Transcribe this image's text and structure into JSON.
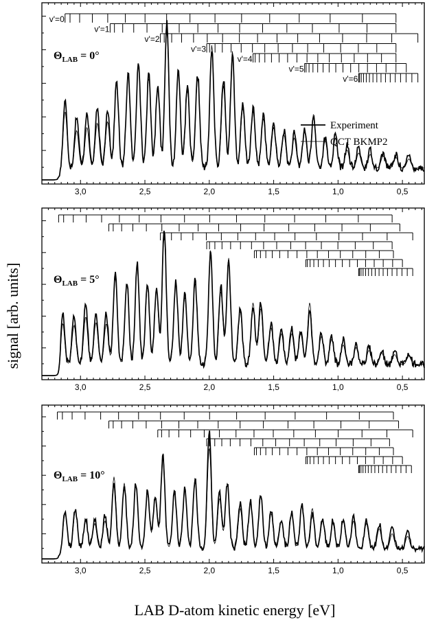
{
  "chart_data": [
    {
      "type": "line",
      "panel": "top",
      "angle_label": {
        "theta": "Θ",
        "sub": "LAB",
        "value": "= 0°"
      },
      "x_ticks": [
        "3,0",
        "2,5",
        "2,0",
        "1,5",
        "1,0",
        "0,5"
      ],
      "x_tick_values": [
        3.0,
        2.5,
        2.0,
        1.5,
        1.0,
        0.5
      ],
      "xlim": [
        3.3,
        0.33
      ],
      "ylim": [
        0,
        1.0
      ],
      "legend": [
        "Experiment",
        "QCT BKMP2"
      ],
      "legend_placement": "right",
      "vibrational_combs": [
        {
          "label": "v'=0",
          "start": 3.12,
          "end": 0.55
        },
        {
          "label": "v'=1",
          "start": 2.77,
          "end": 0.55
        },
        {
          "label": "v'=2",
          "start": 2.38,
          "end": 0.38
        },
        {
          "label": "v'=3",
          "start": 2.02,
          "end": 0.55
        },
        {
          "label": "v'=4",
          "start": 1.66,
          "end": 0.55
        },
        {
          "label": "v'=5",
          "start": 1.26,
          "end": 0.47
        },
        {
          "label": "v'=6",
          "start": 0.84,
          "end": 0.38
        }
      ],
      "peaks": [
        {
          "x": 3.12,
          "exp": 0.45,
          "qct": 0.38
        },
        {
          "x": 3.03,
          "exp": 0.35,
          "qct": 0.25
        },
        {
          "x": 2.95,
          "exp": 0.38,
          "qct": 0.27
        },
        {
          "x": 2.87,
          "exp": 0.39,
          "qct": 0.3
        },
        {
          "x": 2.79,
          "exp": 0.4,
          "qct": 0.31
        },
        {
          "x": 2.72,
          "exp": 0.58,
          "qct": 0.57
        },
        {
          "x": 2.63,
          "exp": 0.64,
          "qct": 0.62
        },
        {
          "x": 2.55,
          "exp": 0.72,
          "qct": 0.7
        },
        {
          "x": 2.47,
          "exp": 0.62,
          "qct": 0.6
        },
        {
          "x": 2.4,
          "exp": 0.56,
          "qct": 0.55
        },
        {
          "x": 2.33,
          "exp": 0.98,
          "qct": 0.92
        },
        {
          "x": 2.24,
          "exp": 0.66,
          "qct": 0.64
        },
        {
          "x": 2.17,
          "exp": 0.54,
          "qct": 0.52
        },
        {
          "x": 2.09,
          "exp": 0.62,
          "qct": 0.6
        },
        {
          "x": 1.98,
          "exp": 0.8,
          "qct": 0.82
        },
        {
          "x": 1.89,
          "exp": 0.6,
          "qct": 0.55
        },
        {
          "x": 1.82,
          "exp": 0.76,
          "qct": 0.78
        },
        {
          "x": 1.74,
          "exp": 0.42,
          "qct": 0.4
        },
        {
          "x": 1.66,
          "exp": 0.4,
          "qct": 0.38
        },
        {
          "x": 1.58,
          "exp": 0.36,
          "qct": 0.33
        },
        {
          "x": 1.5,
          "exp": 0.3,
          "qct": 0.27
        },
        {
          "x": 1.42,
          "exp": 0.25,
          "qct": 0.22
        },
        {
          "x": 1.34,
          "exp": 0.23,
          "qct": 0.2
        },
        {
          "x": 1.26,
          "exp": 0.26,
          "qct": 0.24
        },
        {
          "x": 1.19,
          "exp": 0.34,
          "qct": 0.36
        },
        {
          "x": 1.1,
          "exp": 0.2,
          "qct": 0.18
        },
        {
          "x": 1.02,
          "exp": 0.22,
          "qct": 0.2
        },
        {
          "x": 0.93,
          "exp": 0.15,
          "qct": 0.12
        },
        {
          "x": 0.84,
          "exp": 0.14,
          "qct": 0.1
        },
        {
          "x": 0.75,
          "exp": 0.12,
          "qct": 0.09
        },
        {
          "x": 0.65,
          "exp": 0.1,
          "qct": 0.08
        },
        {
          "x": 0.55,
          "exp": 0.09,
          "qct": 0.07
        },
        {
          "x": 0.45,
          "exp": 0.08,
          "qct": 0.06
        }
      ]
    },
    {
      "type": "line",
      "panel": "middle",
      "angle_label": {
        "theta": "Θ",
        "sub": "LAB",
        "value": "= 5°"
      },
      "x_ticks": [
        "3,0",
        "2,5",
        "2,0",
        "1,5",
        "1,0",
        "0,5"
      ],
      "x_tick_values": [
        3.0,
        2.5,
        2.0,
        1.5,
        1.0,
        0.5
      ],
      "xlim": [
        3.3,
        0.33
      ],
      "ylim": [
        0,
        1.0
      ],
      "vibrational_combs": [
        {
          "label": "",
          "start": 3.17,
          "end": 0.58
        },
        {
          "label": "",
          "start": 2.78,
          "end": 0.52
        },
        {
          "label": "",
          "start": 2.38,
          "end": 0.42
        },
        {
          "label": "",
          "start": 2.02,
          "end": 0.58
        },
        {
          "label": "",
          "start": 1.65,
          "end": 0.57
        },
        {
          "label": "",
          "start": 1.25,
          "end": 0.5
        },
        {
          "label": "",
          "start": 0.84,
          "end": 0.42
        }
      ],
      "peaks": [
        {
          "x": 3.14,
          "exp": 0.4,
          "qct": 0.32
        },
        {
          "x": 3.05,
          "exp": 0.36,
          "qct": 0.28
        },
        {
          "x": 2.96,
          "exp": 0.44,
          "qct": 0.34
        },
        {
          "x": 2.88,
          "exp": 0.38,
          "qct": 0.3
        },
        {
          "x": 2.8,
          "exp": 0.36,
          "qct": 0.29
        },
        {
          "x": 2.73,
          "exp": 0.66,
          "qct": 0.62
        },
        {
          "x": 2.64,
          "exp": 0.6,
          "qct": 0.58
        },
        {
          "x": 2.56,
          "exp": 0.72,
          "qct": 0.7
        },
        {
          "x": 2.48,
          "exp": 0.58,
          "qct": 0.56
        },
        {
          "x": 2.41,
          "exp": 0.55,
          "qct": 0.53
        },
        {
          "x": 2.35,
          "exp": 0.97,
          "qct": 0.92
        },
        {
          "x": 2.26,
          "exp": 0.6,
          "qct": 0.58
        },
        {
          "x": 2.19,
          "exp": 0.5,
          "qct": 0.48
        },
        {
          "x": 2.11,
          "exp": 0.6,
          "qct": 0.58
        },
        {
          "x": 1.99,
          "exp": 0.8,
          "qct": 0.82
        },
        {
          "x": 1.91,
          "exp": 0.56,
          "qct": 0.52
        },
        {
          "x": 1.85,
          "exp": 0.74,
          "qct": 0.76
        },
        {
          "x": 1.76,
          "exp": 0.4,
          "qct": 0.38
        },
        {
          "x": 1.66,
          "exp": 0.42,
          "qct": 0.44
        },
        {
          "x": 1.6,
          "exp": 0.44,
          "qct": 0.4
        },
        {
          "x": 1.52,
          "exp": 0.3,
          "qct": 0.26
        },
        {
          "x": 1.44,
          "exp": 0.26,
          "qct": 0.22
        },
        {
          "x": 1.36,
          "exp": 0.26,
          "qct": 0.22
        },
        {
          "x": 1.29,
          "exp": 0.24,
          "qct": 0.22
        },
        {
          "x": 1.22,
          "exp": 0.38,
          "qct": 0.44
        },
        {
          "x": 1.13,
          "exp": 0.22,
          "qct": 0.2
        },
        {
          "x": 1.05,
          "exp": 0.2,
          "qct": 0.18
        },
        {
          "x": 0.96,
          "exp": 0.18,
          "qct": 0.14
        },
        {
          "x": 0.86,
          "exp": 0.15,
          "qct": 0.12
        },
        {
          "x": 0.76,
          "exp": 0.13,
          "qct": 0.1
        },
        {
          "x": 0.66,
          "exp": 0.11,
          "qct": 0.08
        },
        {
          "x": 0.56,
          "exp": 0.1,
          "qct": 0.07
        },
        {
          "x": 0.45,
          "exp": 0.09,
          "qct": 0.06
        }
      ]
    },
    {
      "type": "line",
      "panel": "bottom",
      "angle_label": {
        "theta": "Θ",
        "sub": "LAB",
        "value": "= 10°"
      },
      "x_ticks": [
        "3,0",
        "2,5",
        "2,0",
        "1,5",
        "1,0",
        "0,5"
      ],
      "x_tick_values": [
        3.0,
        2.5,
        2.0,
        1.5,
        1.0,
        0.5
      ],
      "xlim": [
        3.3,
        0.33
      ],
      "ylim": [
        0,
        1.0
      ],
      "xlabel": "LAB D-atom kinetic energy [eV]",
      "vibrational_combs": [
        {
          "label": "",
          "start": 3.18,
          "end": 0.57
        },
        {
          "label": "",
          "start": 2.78,
          "end": 0.53
        },
        {
          "label": "",
          "start": 2.4,
          "end": 0.42
        },
        {
          "label": "",
          "start": 2.02,
          "end": 0.6
        },
        {
          "label": "",
          "start": 1.65,
          "end": 0.57
        },
        {
          "label": "",
          "start": 1.25,
          "end": 0.5
        },
        {
          "label": "",
          "start": 0.84,
          "end": 0.43
        }
      ],
      "peaks": [
        {
          "x": 3.12,
          "exp": 0.3,
          "qct": 0.28
        },
        {
          "x": 3.04,
          "exp": 0.32,
          "qct": 0.3
        },
        {
          "x": 2.96,
          "exp": 0.24,
          "qct": 0.22
        },
        {
          "x": 2.89,
          "exp": 0.24,
          "qct": 0.2
        },
        {
          "x": 2.81,
          "exp": 0.26,
          "qct": 0.22
        },
        {
          "x": 2.74,
          "exp": 0.52,
          "qct": 0.57
        },
        {
          "x": 2.66,
          "exp": 0.5,
          "qct": 0.52
        },
        {
          "x": 2.57,
          "exp": 0.52,
          "qct": 0.5
        },
        {
          "x": 2.48,
          "exp": 0.46,
          "qct": 0.44
        },
        {
          "x": 2.42,
          "exp": 0.42,
          "qct": 0.4
        },
        {
          "x": 2.36,
          "exp": 0.74,
          "qct": 0.76
        },
        {
          "x": 2.27,
          "exp": 0.46,
          "qct": 0.44
        },
        {
          "x": 2.19,
          "exp": 0.48,
          "qct": 0.46
        },
        {
          "x": 2.11,
          "exp": 0.56,
          "qct": 0.56
        },
        {
          "x": 2.0,
          "exp": 0.92,
          "qct": 0.8
        },
        {
          "x": 1.92,
          "exp": 0.46,
          "qct": 0.4
        },
        {
          "x": 1.86,
          "exp": 0.52,
          "qct": 0.52
        },
        {
          "x": 1.76,
          "exp": 0.36,
          "qct": 0.32
        },
        {
          "x": 1.68,
          "exp": 0.38,
          "qct": 0.36
        },
        {
          "x": 1.6,
          "exp": 0.44,
          "qct": 0.42
        },
        {
          "x": 1.52,
          "exp": 0.3,
          "qct": 0.28
        },
        {
          "x": 1.44,
          "exp": 0.24,
          "qct": 0.22
        },
        {
          "x": 1.36,
          "exp": 0.3,
          "qct": 0.28
        },
        {
          "x": 1.28,
          "exp": 0.34,
          "qct": 0.36
        },
        {
          "x": 1.2,
          "exp": 0.28,
          "qct": 0.32
        },
        {
          "x": 1.12,
          "exp": 0.24,
          "qct": 0.22
        },
        {
          "x": 1.04,
          "exp": 0.22,
          "qct": 0.2
        },
        {
          "x": 0.96,
          "exp": 0.24,
          "qct": 0.22
        },
        {
          "x": 0.88,
          "exp": 0.26,
          "qct": 0.22
        },
        {
          "x": 0.78,
          "exp": 0.22,
          "qct": 0.2
        },
        {
          "x": 0.68,
          "exp": 0.2,
          "qct": 0.16
        },
        {
          "x": 0.58,
          "exp": 0.18,
          "qct": 0.12
        },
        {
          "x": 0.46,
          "exp": 0.16,
          "qct": 0.1
        }
      ]
    }
  ],
  "figure": {
    "ylabel": "signal [arb. units]"
  }
}
